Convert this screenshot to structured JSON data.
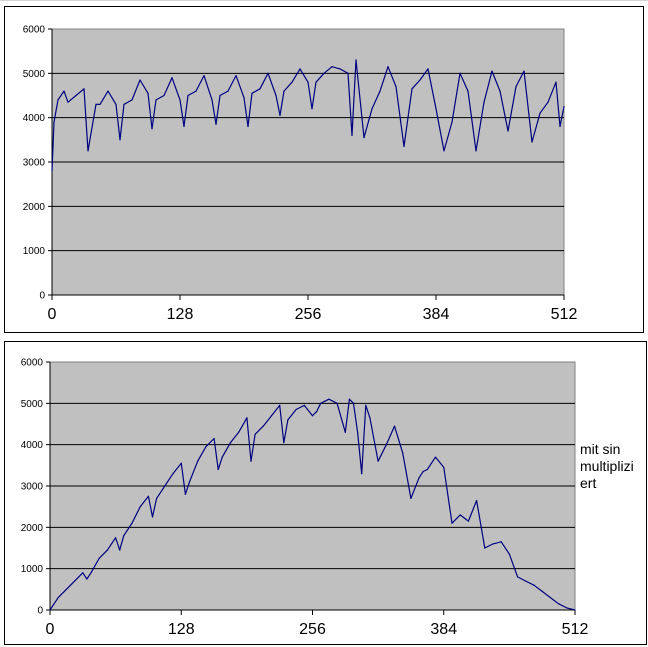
{
  "chart_data": [
    {
      "type": "line",
      "title": "",
      "xlabel": "",
      "ylabel": "",
      "xlim": [
        0,
        512
      ],
      "ylim": [
        0,
        6000
      ],
      "x_ticks": [
        "0",
        "128",
        "256",
        "384",
        "512"
      ],
      "y_ticks": [
        "0",
        "1000",
        "2000",
        "3000",
        "4000",
        "5000",
        "6000"
      ],
      "grid": "horizontal",
      "plot_background": "#c0c0c0",
      "line_color": "#000080",
      "series": [
        {
          "x": [
            0,
            2,
            6,
            12,
            16,
            24,
            32,
            36,
            44,
            48,
            56,
            64,
            68,
            72,
            80,
            88,
            96,
            100,
            104,
            112,
            120,
            128,
            132,
            136,
            144,
            152,
            160,
            164,
            168,
            176,
            184,
            192,
            196,
            200,
            208,
            216,
            224,
            228,
            232,
            240,
            248,
            256,
            260,
            264,
            272,
            280,
            288,
            296,
            300,
            304,
            312,
            320,
            328,
            336,
            344,
            352,
            360,
            368,
            376,
            384,
            392,
            400,
            408,
            416,
            424,
            432,
            440,
            448,
            456,
            464,
            472,
            480,
            488,
            496,
            504,
            508,
            512
          ],
          "values": [
            2800,
            3900,
            4400,
            4600,
            4350,
            4500,
            4650,
            3250,
            4300,
            4300,
            4600,
            4300,
            3500,
            4300,
            4400,
            4850,
            4550,
            3750,
            4400,
            4500,
            4900,
            4400,
            3800,
            4500,
            4600,
            4950,
            4400,
            3850,
            4500,
            4600,
            4950,
            4450,
            3800,
            4550,
            4650,
            5000,
            4500,
            4050,
            4600,
            4800,
            5100,
            4800,
            4200,
            4800,
            5000,
            5150,
            5100,
            5000,
            3600,
            5300,
            3550,
            4200,
            4600,
            5150,
            4700,
            3350,
            4650,
            4850,
            5100,
            4200,
            3250,
            3900,
            5000,
            4600,
            3250,
            4350,
            5050,
            4600,
            3700,
            4700,
            5050,
            3450,
            4100,
            4350,
            4800,
            3800,
            4250
          ]
        }
      ]
    },
    {
      "type": "line",
      "title": "",
      "xlabel": "",
      "ylabel": "",
      "xlim": [
        0,
        512
      ],
      "ylim": [
        0,
        6000
      ],
      "x_ticks": [
        "0",
        "128",
        "256",
        "384",
        "512"
      ],
      "y_ticks": [
        "0",
        "1000",
        "2000",
        "3000",
        "4000",
        "5000",
        "6000"
      ],
      "grid": "horizontal",
      "plot_background": "#c0c0c0",
      "line_color": "#000080",
      "series": [
        {
          "x": [
            0,
            8,
            16,
            24,
            32,
            36,
            40,
            48,
            56,
            64,
            68,
            72,
            80,
            88,
            96,
            100,
            104,
            112,
            120,
            128,
            132,
            136,
            144,
            152,
            160,
            164,
            168,
            176,
            184,
            192,
            196,
            200,
            208,
            216,
            224,
            228,
            232,
            240,
            248,
            256,
            260,
            264,
            272,
            280,
            288,
            292,
            296,
            300,
            304,
            308,
            312,
            320,
            328,
            336,
            344,
            352,
            360,
            364,
            368,
            376,
            384,
            392,
            400,
            408,
            416,
            424,
            432,
            440,
            448,
            456,
            464,
            472,
            480,
            488,
            496,
            504,
            512
          ],
          "values": [
            0,
            300,
            500,
            700,
            900,
            750,
            900,
            1250,
            1450,
            1750,
            1450,
            1800,
            2100,
            2500,
            2750,
            2250,
            2700,
            3000,
            3300,
            3550,
            2800,
            3100,
            3600,
            3950,
            4150,
            3400,
            3700,
            4050,
            4300,
            4650,
            3600,
            4250,
            4450,
            4700,
            4950,
            4050,
            4600,
            4850,
            4950,
            4700,
            4800,
            5000,
            5100,
            5000,
            4300,
            5100,
            5000,
            4300,
            3300,
            4950,
            4650,
            3600,
            4000,
            4450,
            3800,
            2700,
            3200,
            3350,
            3400,
            3700,
            3450,
            2100,
            2300,
            2150,
            2650,
            1500,
            1600,
            1650,
            1350,
            800,
            700,
            600,
            450,
            300,
            150,
            50,
            0
          ]
        }
      ]
    }
  ],
  "sheet_text": [
    "mit sin",
    "multiplizi",
    "ert"
  ]
}
